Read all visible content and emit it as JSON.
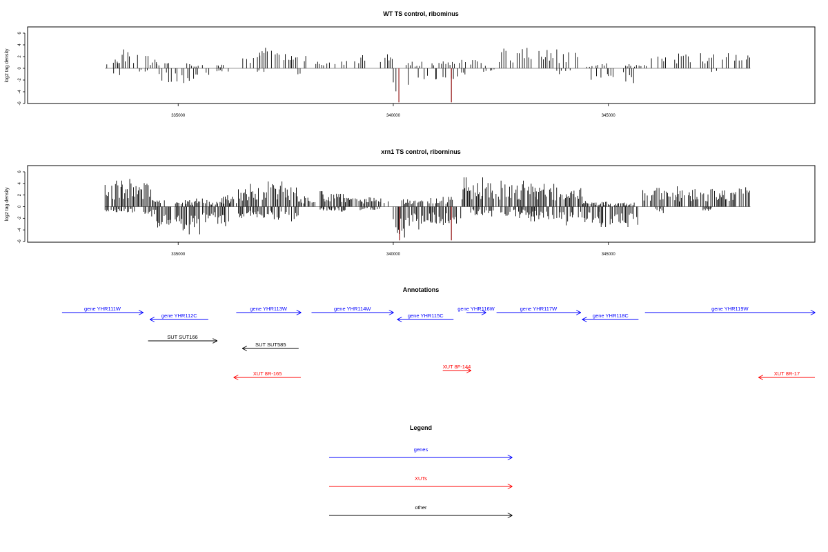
{
  "chart_data": [
    {
      "type": "bar",
      "title": "WT TS control, ribominus",
      "ylabel": "log2 tag density",
      "xlabel": "",
      "xlim": [
        331500,
        349800
      ],
      "ylim": [
        -6,
        7
      ],
      "x_ticks": [
        335000,
        340000,
        345000
      ],
      "x_tick_labels": [
        "335000",
        "340000",
        "345000"
      ],
      "y_ticks": [
        -6,
        -4,
        -2,
        0,
        2,
        4,
        6
      ],
      "y_tick_labels": [
        "-6",
        "-4",
        "-2",
        "0",
        "2",
        "4",
        "6"
      ],
      "grid": false,
      "colors": {
        "bars": "#000000",
        "highlight": "#8b0000",
        "baseline": "#999999"
      },
      "series": [
        {
          "strand": "plus",
          "segments": [
            {
              "from": 333300,
              "to": 333600,
              "level": 1.6
            },
            {
              "from": 333600,
              "to": 334000,
              "level": 2.3
            },
            {
              "from": 334000,
              "to": 334300,
              "level": 2.6
            },
            {
              "from": 334300,
              "to": 334500,
              "level": 1.5
            },
            {
              "from": 334500,
              "to": 334800,
              "level": 0.9
            },
            {
              "from": 335200,
              "to": 335600,
              "level": 0.6
            },
            {
              "from": 335900,
              "to": 336100,
              "level": 0.5
            },
            {
              "from": 336400,
              "to": 336900,
              "level": 1.9
            },
            {
              "from": 336900,
              "to": 337600,
              "level": 2.5
            },
            {
              "from": 337600,
              "to": 338000,
              "level": 1.7
            },
            {
              "from": 338200,
              "to": 338700,
              "level": 0.8
            },
            {
              "from": 338800,
              "to": 339400,
              "level": 1.6
            },
            {
              "from": 339700,
              "to": 340000,
              "level": 1.7
            },
            {
              "from": 340300,
              "to": 340700,
              "level": 0.8
            },
            {
              "from": 340900,
              "to": 341700,
              "level": 1.2
            },
            {
              "from": 341800,
              "to": 342200,
              "level": 1.0
            },
            {
              "from": 342400,
              "to": 343000,
              "level": 2.4
            },
            {
              "from": 343000,
              "to": 343800,
              "level": 2.8
            },
            {
              "from": 343800,
              "to": 344300,
              "level": 2.3
            },
            {
              "from": 344500,
              "to": 345000,
              "level": 0.6
            },
            {
              "from": 345400,
              "to": 345900,
              "level": 0.5
            },
            {
              "from": 346000,
              "to": 346700,
              "level": 1.8
            },
            {
              "from": 346700,
              "to": 347600,
              "level": 2.1
            },
            {
              "from": 347600,
              "to": 348300,
              "level": 2.3
            }
          ]
        },
        {
          "strand": "minus",
          "segments": [
            {
              "from": 333500,
              "to": 333700,
              "level": 1.0
            },
            {
              "from": 334100,
              "to": 334300,
              "level": 0.6
            },
            {
              "from": 334500,
              "to": 335000,
              "level": 2.0
            },
            {
              "from": 335000,
              "to": 335500,
              "level": 2.6
            },
            {
              "from": 335500,
              "to": 335800,
              "level": 1.5
            },
            {
              "from": 335900,
              "to": 336200,
              "level": 0.8
            },
            {
              "from": 336800,
              "to": 337000,
              "level": 0.5
            },
            {
              "from": 337700,
              "to": 337900,
              "level": 1.2
            },
            {
              "from": 340000,
              "to": 340300,
              "level": 3.5
            },
            {
              "from": 340300,
              "to": 341000,
              "level": 2.0
            },
            {
              "from": 341000,
              "to": 341700,
              "level": 1.9
            },
            {
              "from": 342100,
              "to": 342500,
              "level": 0.5
            },
            {
              "from": 343800,
              "to": 344200,
              "level": 0.8
            },
            {
              "from": 344600,
              "to": 345000,
              "level": 1.7
            },
            {
              "from": 345000,
              "to": 345600,
              "level": 1.8
            },
            {
              "from": 347400,
              "to": 347600,
              "level": 0.5
            }
          ]
        }
      ],
      "highlight_x": [
        340130,
        341350
      ],
      "highlight_y": [
        -5.8,
        -5.8
      ]
    },
    {
      "type": "bar",
      "title": "xrn1 TS control, riborninus",
      "ylabel": "log2 tag density",
      "xlabel": "",
      "xlim": [
        331500,
        349800
      ],
      "ylim": [
        -6,
        7
      ],
      "x_ticks": [
        335000,
        340000,
        345000
      ],
      "x_tick_labels": [
        "335000",
        "340000",
        "345000"
      ],
      "y_ticks": [
        -6,
        -4,
        -2,
        0,
        2,
        4,
        6
      ],
      "y_tick_labels": [
        "-6",
        "-4",
        "-2",
        "0",
        "2",
        "4",
        "6"
      ],
      "grid": false,
      "colors": {
        "bars": "#000000",
        "highlight": "#8b0000",
        "baseline": "#999999"
      },
      "series": [
        {
          "strand": "plus",
          "segments": [
            {
              "from": 333300,
              "to": 333700,
              "level": 3.2
            },
            {
              "from": 333700,
              "to": 334400,
              "level": 3.4
            },
            {
              "from": 334400,
              "to": 334700,
              "level": 1.2
            },
            {
              "from": 334900,
              "to": 335400,
              "level": 0.8
            },
            {
              "from": 335400,
              "to": 336000,
              "level": 1.0
            },
            {
              "from": 336000,
              "to": 336400,
              "level": 1.4
            },
            {
              "from": 336400,
              "to": 337000,
              "level": 2.8
            },
            {
              "from": 337000,
              "to": 337800,
              "level": 3.1
            },
            {
              "from": 337800,
              "to": 338200,
              "level": 1.5
            },
            {
              "from": 338300,
              "to": 339000,
              "level": 1.9
            },
            {
              "from": 339000,
              "to": 339900,
              "level": 1.3
            },
            {
              "from": 340200,
              "to": 340700,
              "level": 0.9
            },
            {
              "from": 340800,
              "to": 341400,
              "level": 1.2
            },
            {
              "from": 341600,
              "to": 342300,
              "level": 3.6
            },
            {
              "from": 342300,
              "to": 343300,
              "level": 3.2
            },
            {
              "from": 343300,
              "to": 344400,
              "level": 2.8
            },
            {
              "from": 344400,
              "to": 345000,
              "level": 0.7
            },
            {
              "from": 345000,
              "to": 345600,
              "level": 0.5
            },
            {
              "from": 345800,
              "to": 346600,
              "level": 2.3
            },
            {
              "from": 346600,
              "to": 347600,
              "level": 2.5
            },
            {
              "from": 347600,
              "to": 348300,
              "level": 2.7
            }
          ]
        },
        {
          "strand": "minus",
          "segments": [
            {
              "from": 333300,
              "to": 334000,
              "level": 0.8
            },
            {
              "from": 334200,
              "to": 334500,
              "level": 1.2
            },
            {
              "from": 334500,
              "to": 335000,
              "level": 3.2
            },
            {
              "from": 335000,
              "to": 335600,
              "level": 3.4
            },
            {
              "from": 335600,
              "to": 336200,
              "level": 2.4
            },
            {
              "from": 336400,
              "to": 337200,
              "level": 1.6
            },
            {
              "from": 337200,
              "to": 337800,
              "level": 1.8
            },
            {
              "from": 338300,
              "to": 338900,
              "level": 0.6
            },
            {
              "from": 339200,
              "to": 339700,
              "level": 0.5
            },
            {
              "from": 340000,
              "to": 340400,
              "level": 3.8
            },
            {
              "from": 340400,
              "to": 341000,
              "level": 2.8
            },
            {
              "from": 341000,
              "to": 341600,
              "level": 2.6
            },
            {
              "from": 341800,
              "to": 342400,
              "level": 1.2
            },
            {
              "from": 342500,
              "to": 343200,
              "level": 1.4
            },
            {
              "from": 343200,
              "to": 344000,
              "level": 1.8
            },
            {
              "from": 344000,
              "to": 344800,
              "level": 2.3
            },
            {
              "from": 344800,
              "to": 345700,
              "level": 2.5
            },
            {
              "from": 346100,
              "to": 346300,
              "level": 0.8
            },
            {
              "from": 347200,
              "to": 347400,
              "level": 0.6
            }
          ]
        }
      ],
      "highlight_x": [
        340150,
        341350
      ],
      "highlight_y": [
        -5.8,
        -5.8
      ]
    }
  ],
  "annotations": {
    "title": "Annotations",
    "features": [
      {
        "label": "gene YHR111W",
        "kind": "gene",
        "strand": "+",
        "start": 332300,
        "end": 334180
      },
      {
        "label": "gene YHR112C",
        "kind": "gene",
        "strand": "-",
        "start": 334350,
        "end": 335700
      },
      {
        "label": "gene YHR113W",
        "kind": "gene",
        "strand": "+",
        "start": 336350,
        "end": 337850
      },
      {
        "label": "gene YHR114W",
        "kind": "gene",
        "strand": "+",
        "start": 338100,
        "end": 340000
      },
      {
        "label": "gene YHR115C",
        "kind": "gene",
        "strand": "-",
        "start": 340100,
        "end": 341400
      },
      {
        "label": "gene YHR116W",
        "kind": "gene",
        "strand": "+",
        "start": 341700,
        "end": 342150
      },
      {
        "label": "gene YHR117W",
        "kind": "gene",
        "strand": "+",
        "start": 342400,
        "end": 344350
      },
      {
        "label": "gene YHR118C",
        "kind": "gene",
        "strand": "-",
        "start": 344400,
        "end": 345700
      },
      {
        "label": "gene YHR119W",
        "kind": "gene",
        "strand": "+",
        "start": 345850,
        "end": 349800
      },
      {
        "label": "SUT SUT166",
        "kind": "other",
        "strand": "+",
        "start": 334300,
        "end": 335900
      },
      {
        "label": "SUT SUT585",
        "kind": "other",
        "strand": "-",
        "start": 336500,
        "end": 337800
      },
      {
        "label": "XUT 8R-165",
        "kind": "xut",
        "strand": "-",
        "start": 336300,
        "end": 337850
      },
      {
        "label": "XUT 8F-144",
        "kind": "xut",
        "strand": "+",
        "start": 341150,
        "end": 341800
      },
      {
        "label": "XUT 8R-17",
        "kind": "xut",
        "strand": "-",
        "start": 348500,
        "end": 349800
      }
    ]
  },
  "legend": {
    "title": "Legend",
    "items": [
      {
        "label": "genes",
        "color": "#0000ff"
      },
      {
        "label": "XUTs",
        "color": "#ff0000"
      },
      {
        "label": "other",
        "color": "#000000"
      }
    ]
  },
  "colors": {
    "gene": "#0000ff",
    "xut": "#ff0000",
    "other": "#000000"
  }
}
